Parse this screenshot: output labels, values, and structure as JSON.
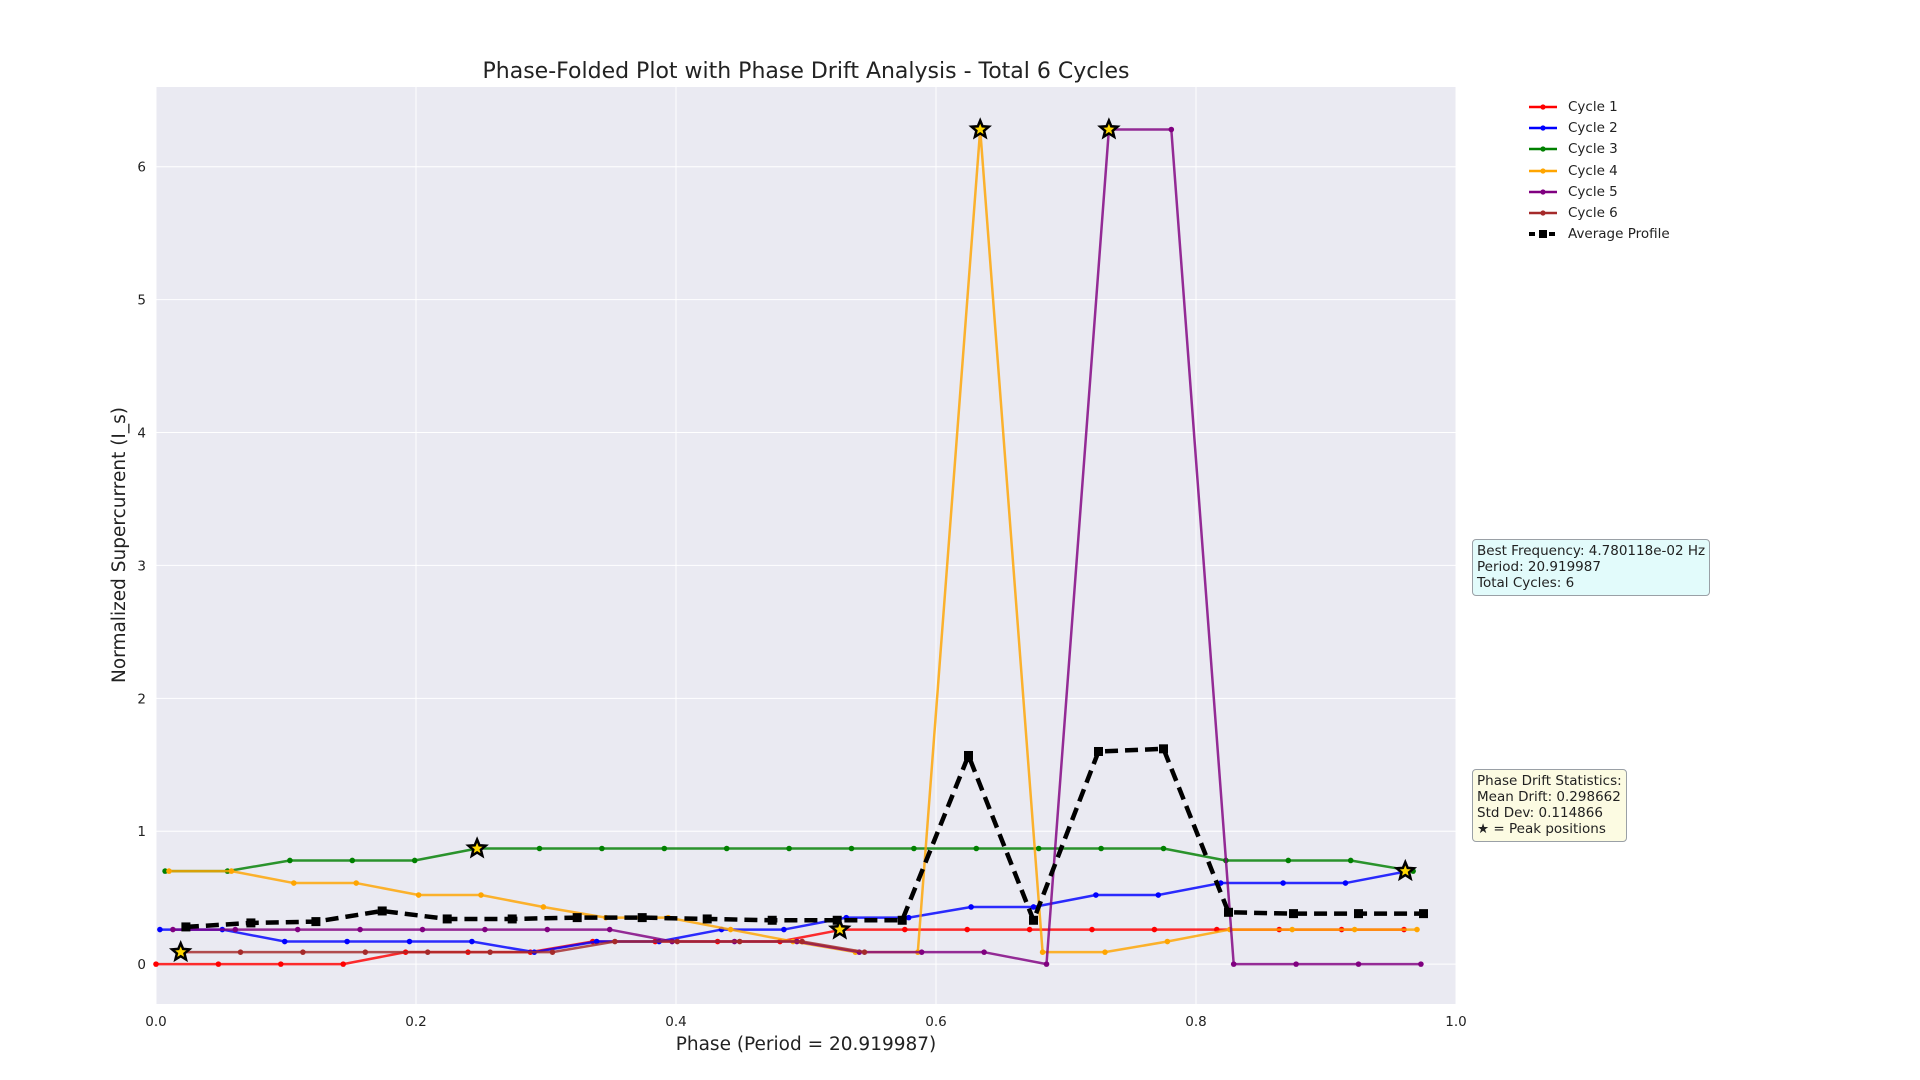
{
  "chart_data": {
    "type": "line",
    "title": "Phase-Folded Plot with Phase Drift Analysis - Total 6 Cycles",
    "xlabel": "Phase (Period = 20.919987)",
    "ylabel": "Normalized Supercurrent (I_s)",
    "xlim": [
      0.0,
      1.0
    ],
    "ylim": [
      -0.3,
      6.6
    ],
    "xticks": [
      "0.0",
      "0.2",
      "0.4",
      "0.6",
      "0.8",
      "1.0"
    ],
    "yticks": [
      "0",
      "1",
      "2",
      "3",
      "4",
      "5",
      "6"
    ],
    "xtick_values": [
      0.0,
      0.2,
      0.4,
      0.6,
      0.8,
      1.0
    ],
    "ytick_values": [
      0,
      1,
      2,
      3,
      4,
      5,
      6
    ],
    "grid": true,
    "legend_position": "outside-right",
    "series": [
      {
        "name": "Cycle 1",
        "color": "#ff0000",
        "x": [
          0.0,
          0.048,
          0.096,
          0.144,
          0.192,
          0.24,
          0.288,
          0.336,
          0.384,
          0.432,
          0.48,
          0.528,
          0.576,
          0.624,
          0.672,
          0.72,
          0.768,
          0.816,
          0.864,
          0.912,
          0.96
        ],
        "y": [
          0.0,
          0.0,
          0.0,
          0.0,
          0.09,
          0.09,
          0.09,
          0.17,
          0.17,
          0.17,
          0.17,
          0.26,
          0.26,
          0.26,
          0.26,
          0.26,
          0.26,
          0.26,
          0.26,
          0.26,
          0.26
        ]
      },
      {
        "name": "Cycle 2",
        "color": "#0000ff",
        "x": [
          0.003,
          0.051,
          0.099,
          0.147,
          0.195,
          0.243,
          0.291,
          0.339,
          0.387,
          0.435,
          0.483,
          0.531,
          0.579,
          0.627,
          0.675,
          0.723,
          0.771,
          0.819,
          0.867,
          0.915,
          0.963
        ],
        "y": [
          0.26,
          0.26,
          0.17,
          0.17,
          0.17,
          0.17,
          0.09,
          0.17,
          0.17,
          0.26,
          0.26,
          0.35,
          0.35,
          0.43,
          0.43,
          0.52,
          0.52,
          0.61,
          0.61,
          0.61,
          0.7
        ]
      },
      {
        "name": "Cycle 3",
        "color": "#008000",
        "x": [
          0.007,
          0.055,
          0.103,
          0.151,
          0.199,
          0.247,
          0.295,
          0.343,
          0.391,
          0.439,
          0.487,
          0.535,
          0.583,
          0.631,
          0.679,
          0.727,
          0.775,
          0.823,
          0.871,
          0.919,
          0.967
        ],
        "y": [
          0.7,
          0.7,
          0.78,
          0.78,
          0.78,
          0.87,
          0.87,
          0.87,
          0.87,
          0.87,
          0.87,
          0.87,
          0.87,
          0.87,
          0.87,
          0.87,
          0.87,
          0.78,
          0.78,
          0.78,
          0.7
        ]
      },
      {
        "name": "Cycle 4",
        "color": "#ffa500",
        "x": [
          0.01,
          0.058,
          0.106,
          0.154,
          0.202,
          0.25,
          0.298,
          0.346,
          0.394,
          0.442,
          0.49,
          0.538,
          0.586,
          0.634,
          0.682,
          0.73,
          0.778,
          0.826,
          0.874,
          0.922,
          0.97
        ],
        "y": [
          0.7,
          0.7,
          0.61,
          0.61,
          0.52,
          0.52,
          0.43,
          0.35,
          0.35,
          0.26,
          0.17,
          0.09,
          0.09,
          6.28,
          0.09,
          0.09,
          0.17,
          0.26,
          0.26,
          0.26,
          0.26
        ]
      },
      {
        "name": "Cycle 5",
        "color": "#800080",
        "x": [
          0.013,
          0.061,
          0.109,
          0.157,
          0.205,
          0.253,
          0.301,
          0.349,
          0.397,
          0.445,
          0.493,
          0.541,
          0.589,
          0.637,
          0.685,
          0.733,
          0.781,
          0.829,
          0.877,
          0.925,
          0.973
        ],
        "y": [
          0.26,
          0.26,
          0.26,
          0.26,
          0.26,
          0.26,
          0.26,
          0.26,
          0.17,
          0.17,
          0.17,
          0.09,
          0.09,
          0.09,
          0.0,
          6.28,
          6.28,
          0.0,
          0.0,
          0.0,
          0.0
        ]
      },
      {
        "name": "Cycle 6",
        "color": "#a52a2a",
        "x": [
          0.017,
          0.065,
          0.113,
          0.161,
          0.209,
          0.257,
          0.305,
          0.353,
          0.401,
          0.449,
          0.497,
          0.545
        ],
        "y": [
          0.09,
          0.09,
          0.09,
          0.09,
          0.09,
          0.09,
          0.09,
          0.17,
          0.17,
          0.17,
          0.17,
          0.09
        ]
      },
      {
        "name": "Average Profile",
        "color": "#000000",
        "style": "dashed",
        "marker": "square",
        "x": [
          0.023,
          0.073,
          0.123,
          0.174,
          0.224,
          0.274,
          0.324,
          0.374,
          0.424,
          0.474,
          0.524,
          0.574,
          0.625,
          0.675,
          0.725,
          0.775,
          0.825,
          0.875,
          0.925,
          0.975
        ],
        "y": [
          0.28,
          0.31,
          0.32,
          0.4,
          0.34,
          0.34,
          0.35,
          0.35,
          0.34,
          0.33,
          0.33,
          0.33,
          1.57,
          0.33,
          1.6,
          1.62,
          0.39,
          0.38,
          0.38,
          0.38
        ]
      }
    ],
    "peaks": [
      {
        "x": 0.019,
        "y": 0.09
      },
      {
        "x": 0.247,
        "y": 0.87
      },
      {
        "x": 0.526,
        "y": 0.26
      },
      {
        "x": 0.634,
        "y": 6.28
      },
      {
        "x": 0.733,
        "y": 6.28
      },
      {
        "x": 0.961,
        "y": 0.7
      }
    ]
  },
  "info_box": {
    "line1": "Best Frequency: 4.780118e-02 Hz",
    "line2": "Period: 20.919987",
    "line3": "Total Cycles: 6"
  },
  "stats_box": {
    "line1": "Phase Drift Statistics:",
    "line2": "Mean Drift: 0.298662",
    "line3": "Std Dev: 0.114866",
    "line4": "★ = Peak positions"
  },
  "colors": {
    "plot_background": "#eaeaf2",
    "grid": "#ffffff",
    "info_box_bg": "#e0ffff",
    "stats_box_bg": "#ffffe0"
  }
}
